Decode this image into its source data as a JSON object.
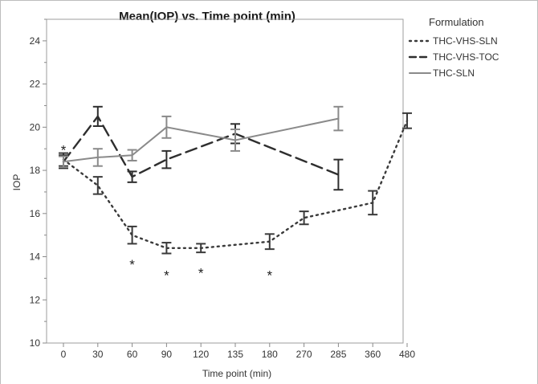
{
  "chart_data": {
    "type": "line",
    "title": "Mean(IOP) vs. Time point (min)",
    "xlabel": "Time point (min)",
    "ylabel": "IOP",
    "categories": [
      "0",
      "30",
      "60",
      "90",
      "120",
      "135",
      "180",
      "270",
      "285",
      "360",
      "480"
    ],
    "ylim": [
      10,
      25
    ],
    "yticks": [
      "10",
      "12",
      "14",
      "16",
      "18",
      "20",
      "22",
      "24"
    ],
    "grid": false,
    "legend": {
      "title": "Formulation",
      "position": "right"
    },
    "series": [
      {
        "name": "THC-VHS-SLN",
        "style": "dotted",
        "color": "#3a3a3a",
        "points": [
          {
            "x": "0",
            "y": 18.5,
            "err": 0.3
          },
          {
            "x": "30",
            "y": 17.3,
            "err": 0.4
          },
          {
            "x": "60",
            "y": 15.0,
            "err": 0.4
          },
          {
            "x": "90",
            "y": 14.4,
            "err": 0.25
          },
          {
            "x": "120",
            "y": 14.4,
            "err": 0.2
          },
          {
            "x": "180",
            "y": 14.7,
            "err": 0.35
          },
          {
            "x": "270",
            "y": 15.8,
            "err": 0.3
          },
          {
            "x": "360",
            "y": 16.5,
            "err": 0.55
          },
          {
            "x": "480",
            "y": 20.3,
            "err": 0.35
          }
        ]
      },
      {
        "name": "THC-VHS-TOC",
        "style": "dashed",
        "color": "#2e2e2e",
        "points": [
          {
            "x": "0",
            "y": 18.4,
            "err": 0.3
          },
          {
            "x": "30",
            "y": 20.5,
            "err": 0.45
          },
          {
            "x": "60",
            "y": 17.7,
            "err": 0.25
          },
          {
            "x": "90",
            "y": 18.5,
            "err": 0.4
          },
          {
            "x": "135",
            "y": 19.7,
            "err": 0.45
          },
          {
            "x": "285",
            "y": 17.8,
            "err": 0.7
          }
        ]
      },
      {
        "name": "THC-SLN",
        "style": "solid",
        "color": "#8a8a8a",
        "points": [
          {
            "x": "0",
            "y": 18.4,
            "err": 0.25
          },
          {
            "x": "30",
            "y": 18.6,
            "err": 0.4
          },
          {
            "x": "60",
            "y": 18.7,
            "err": 0.25
          },
          {
            "x": "90",
            "y": 20.0,
            "err": 0.5
          },
          {
            "x": "135",
            "y": 19.4,
            "err": 0.5
          },
          {
            "x": "285",
            "y": 20.4,
            "err": 0.55
          }
        ]
      }
    ],
    "annotations": [
      {
        "x": "0",
        "y": 19.1,
        "text": "*"
      },
      {
        "x": "60",
        "y": 13.8,
        "text": "*"
      },
      {
        "x": "90",
        "y": 13.3,
        "text": "*"
      },
      {
        "x": "120",
        "y": 13.4,
        "text": "*"
      },
      {
        "x": "180",
        "y": 13.3,
        "text": "*"
      }
    ]
  }
}
